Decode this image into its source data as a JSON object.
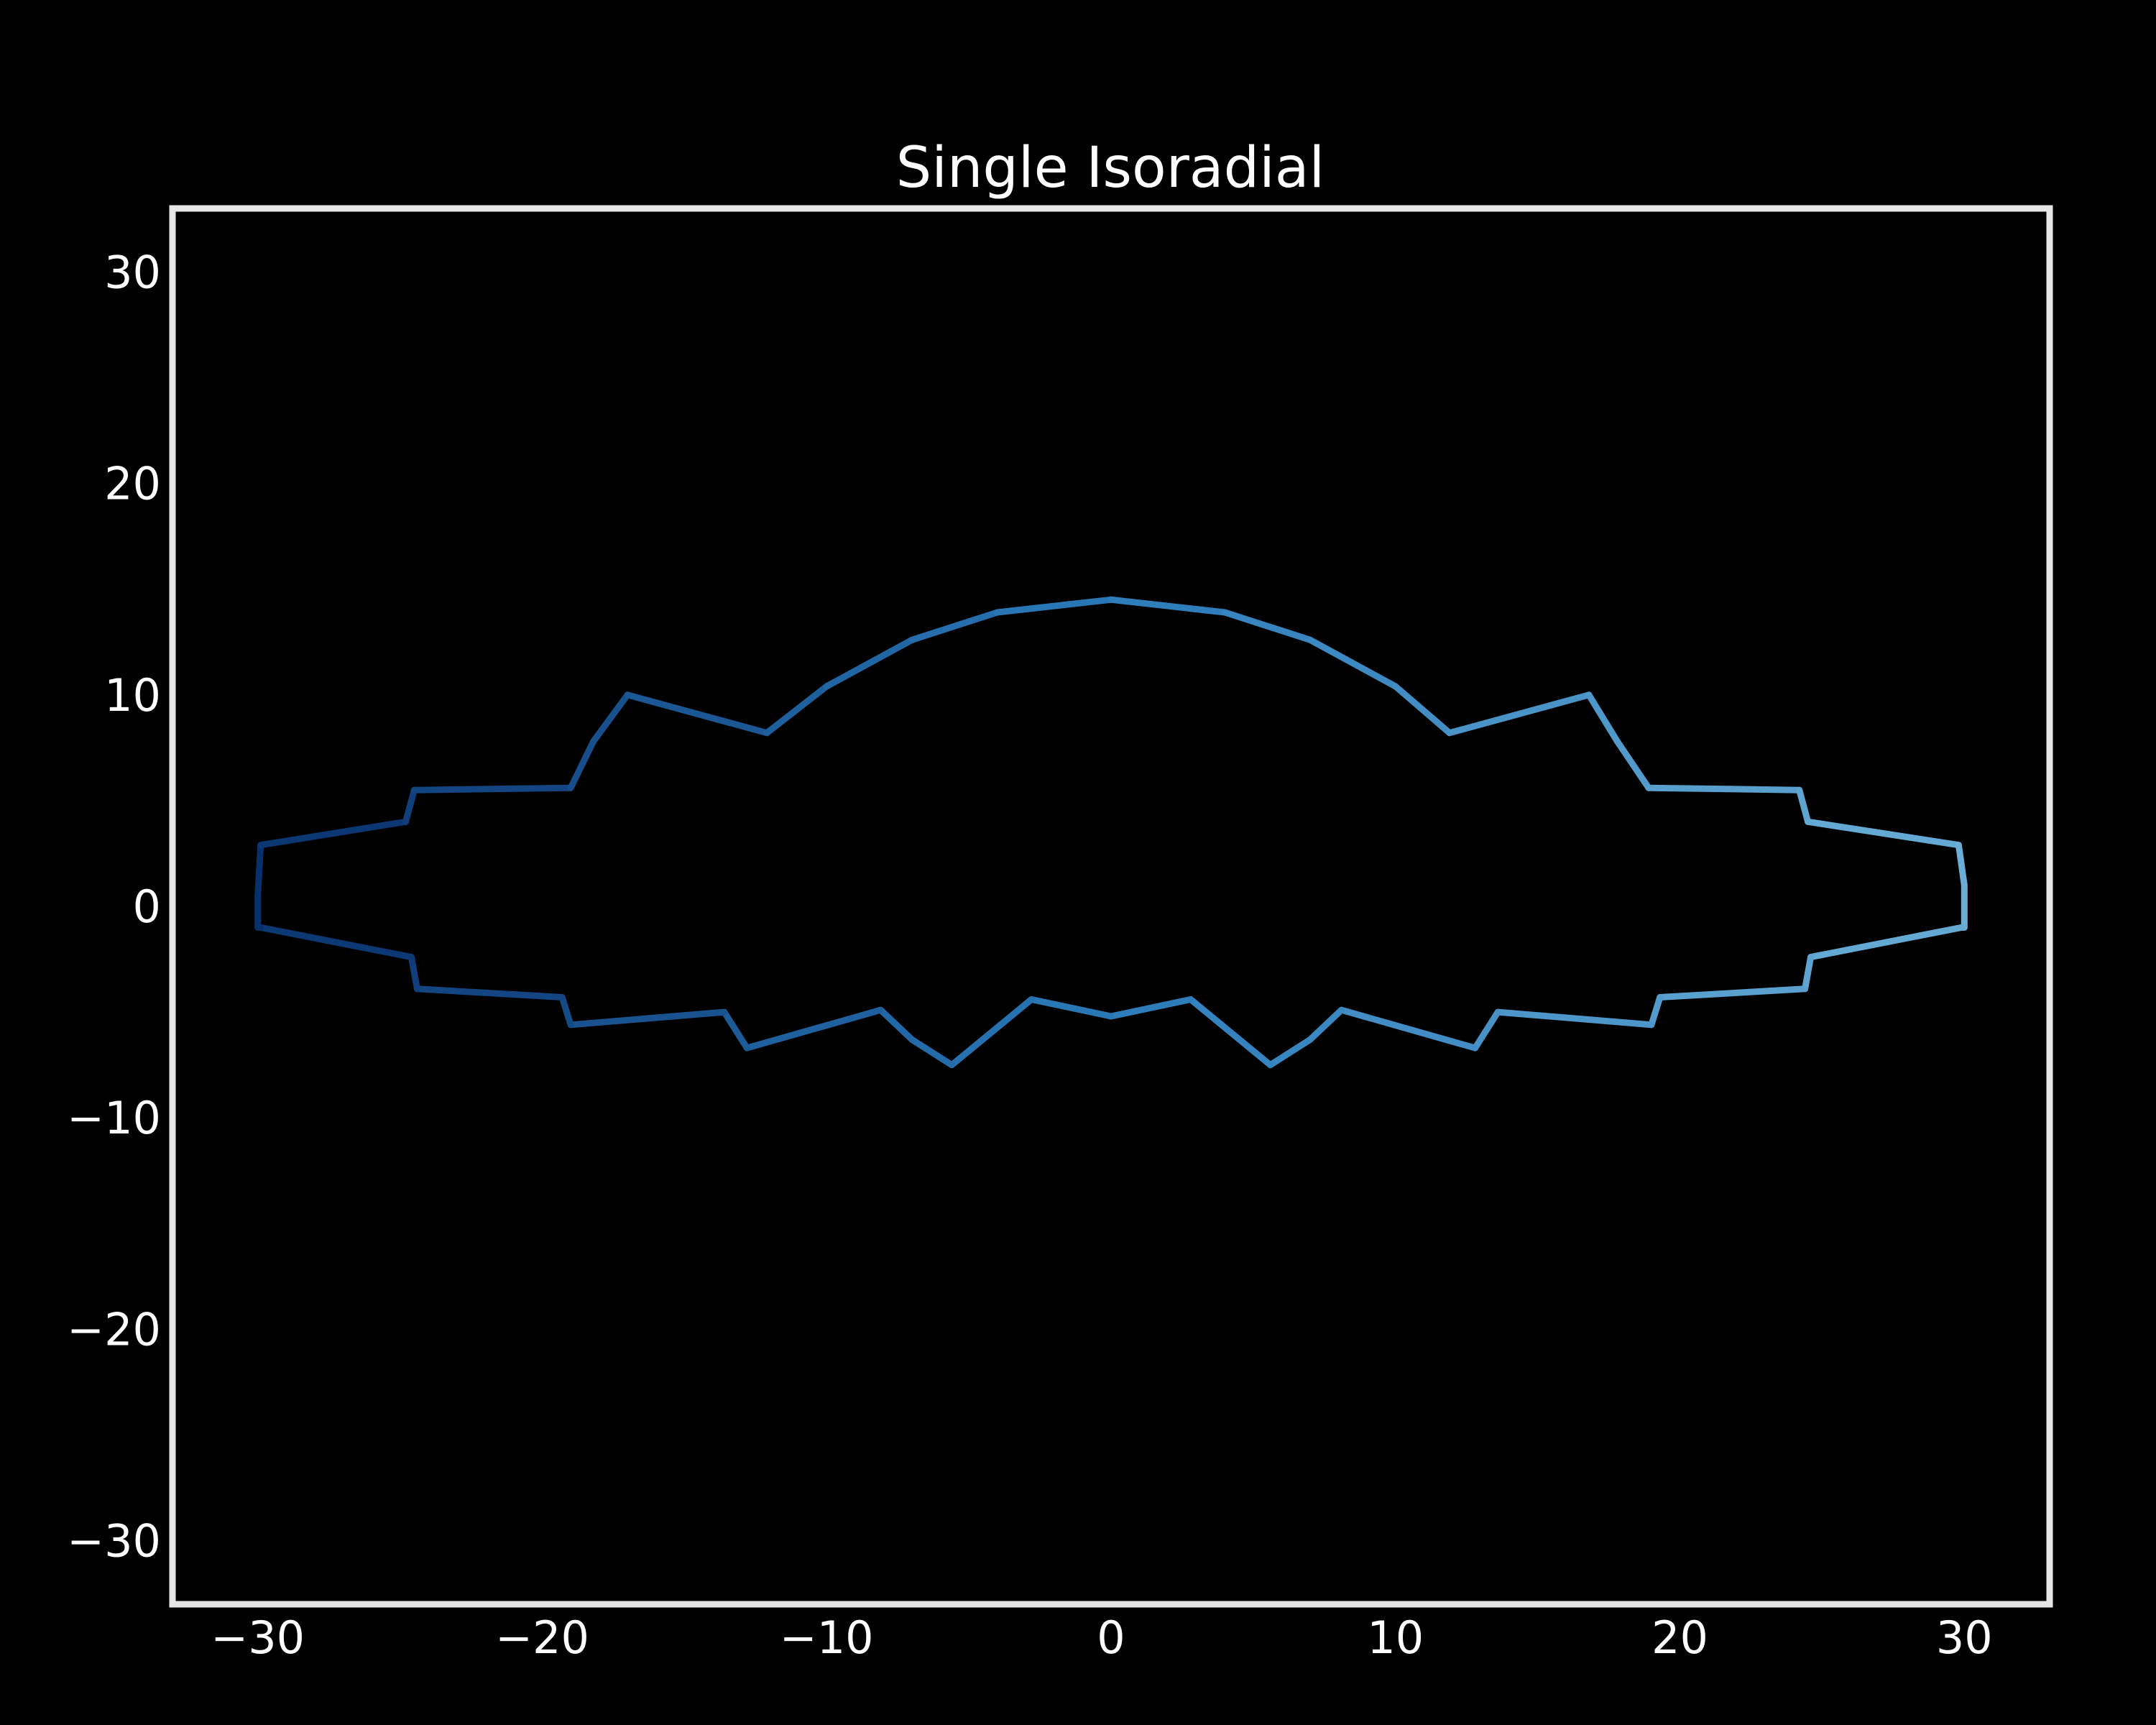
{
  "chart_data": {
    "type": "line",
    "title": "Single Isoradial",
    "xlabel": "",
    "ylabel": "",
    "xlim": [
      -33,
      33
    ],
    "ylim": [
      -33,
      33
    ],
    "x_ticks": [
      -30,
      -20,
      -10,
      0,
      10,
      20,
      30
    ],
    "y_ticks": [
      30,
      20,
      10,
      0,
      -10,
      -20,
      -30
    ],
    "x_tick_labels": [
      "−30",
      "−20",
      "−10",
      "0",
      "10",
      "20",
      "30"
    ],
    "y_tick_labels": [
      "30",
      "20",
      "10",
      "0",
      "−10",
      "−20",
      "−30"
    ],
    "grid": false,
    "colormap_start": "#08306b",
    "colormap_mid": "#2b7bba",
    "colormap_end": "#6baed6",
    "frame_color": "#e6e6e6",
    "background": "#000000",
    "series": [
      {
        "x": [
          -30.0,
          -30.0,
          -29.9,
          -24.8,
          -24.5,
          -19.0,
          -18.2,
          -17.0,
          -12.1,
          -10.0,
          -7.0,
          -4.0,
          0.0,
          4.0,
          7.0,
          10.0,
          11.9,
          16.8,
          17.8,
          18.9,
          24.2,
          24.5,
          29.8,
          30.0,
          30.0,
          29.9,
          24.6,
          24.4,
          19.3,
          19.0,
          13.6,
          12.8,
          8.1,
          7.0,
          5.6,
          2.8,
          0.0,
          -2.8,
          -5.6,
          -7.0,
          -8.1,
          -12.8,
          -13.6,
          -19.0,
          -19.3,
          -24.4,
          -24.6,
          -29.9
        ],
        "y": [
          -1.0,
          0.5,
          2.9,
          4.0,
          5.5,
          5.6,
          7.8,
          10.0,
          8.2,
          10.4,
          12.6,
          13.9,
          14.5,
          13.9,
          12.6,
          10.4,
          8.2,
          10.0,
          7.8,
          5.6,
          5.5,
          4.0,
          2.9,
          1.0,
          -1.0,
          -1.0,
          -2.4,
          -3.9,
          -4.3,
          -5.6,
          -5.0,
          -6.7,
          -4.9,
          -6.3,
          -7.5,
          -4.4,
          -5.2,
          -4.4,
          -7.5,
          -6.3,
          -4.9,
          -6.7,
          -5.0,
          -5.6,
          -4.3,
          -3.9,
          -2.4,
          -1.0
        ]
      }
    ]
  }
}
